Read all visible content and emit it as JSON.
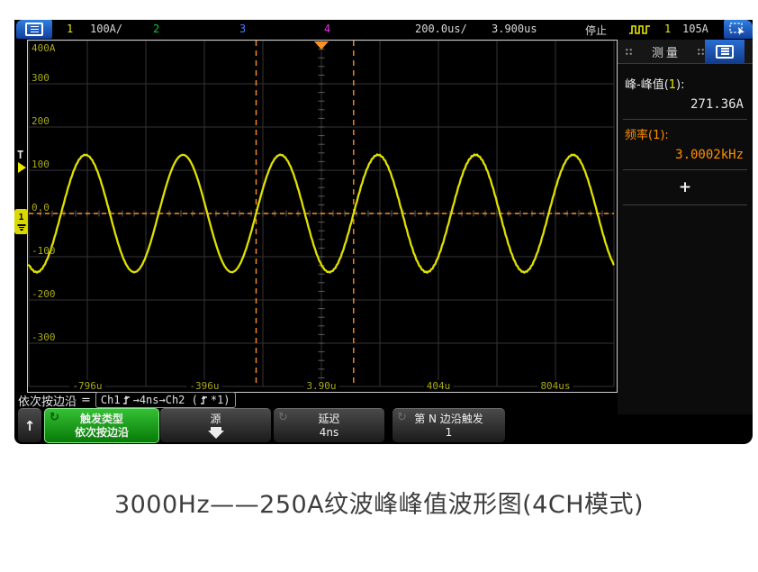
{
  "topbar": {
    "ch1_label": "1",
    "ch1_scale": "100A/",
    "ch2_label": "2",
    "ch3_label": "3",
    "ch4_label": "4",
    "timebase": "200.0us/",
    "delay": "3.900us",
    "run_status": "停止",
    "trigger_source": "1",
    "trigger_level": "105A"
  },
  "markers": {
    "trigger_letter": "T",
    "ch1_badge": "1"
  },
  "right_panel": {
    "title": "测量",
    "peak_label_prefix": "峰-峰值(",
    "peak_chan": "1",
    "peak_label_suffix": "):",
    "peak_value": "271.36A",
    "freq_label": "频率(1):",
    "freq_value": "3.0002kHz",
    "add_button": "+"
  },
  "status_line": {
    "mode": "依次按边沿",
    "equals": "=",
    "seq_prefix": "Ch1",
    "seq_mid": "→4ns→Ch2 (",
    "seq_suffix": "*1)"
  },
  "softkeys": {
    "up": "↑",
    "trigger_type": {
      "line1": "触发类型",
      "line2": "依次按边沿"
    },
    "source": {
      "line1": "源"
    },
    "delay": {
      "line1": "延迟",
      "line2": "4ns"
    },
    "nth_edge": {
      "line1": "第 N 边沿触发",
      "line2": "1"
    }
  },
  "caption": "3000Hz——250A纹波峰峰值波形图(4CH模式)",
  "colors": {
    "ch1_yellow": "#e8e800",
    "ch2_green": "#00cc33",
    "ch3_blue": "#4a7cff",
    "ch4_magenta": "#e234e2",
    "cursor_orange": "#ff9020",
    "axis_label": "#a8a818",
    "accent_blue": "#1d5fc2",
    "softkey_green": "#18a018"
  },
  "chart_data": {
    "type": "line",
    "title": "",
    "x_axis": {
      "unit": "time",
      "per_div_us": 200.0,
      "divisions": 10,
      "reference_us": 3.9,
      "tick_labels": [
        "-796u",
        "-396u",
        "3.90u",
        "404u",
        "804us"
      ],
      "tick_divisions": [
        1,
        3,
        5,
        7,
        9
      ]
    },
    "y_axis": {
      "unit": "A",
      "per_div_A": 100,
      "divisions": 8,
      "range_A": [
        -400,
        400
      ],
      "tick_labels": [
        "400A",
        "300",
        "200",
        "100",
        "0.0",
        "-100",
        "-200",
        "-300"
      ]
    },
    "grid": true,
    "series": [
      {
        "name": "CH1",
        "color": "#e0e000",
        "waveform": "sine",
        "amplitude_A": 135.68,
        "offset_A": 0,
        "frequency_hz": 3000.2,
        "rising_zero_crossing_us": -219.2,
        "peak_to_peak_A": 271.36
      }
    ],
    "cursors": {
      "vertical_us": [
        -219.2,
        114.1
      ],
      "horizontal_A": 0,
      "color": "#ff9020"
    },
    "trigger": {
      "position_us": 3.9,
      "level_A": 105,
      "source_channel": 1
    }
  }
}
